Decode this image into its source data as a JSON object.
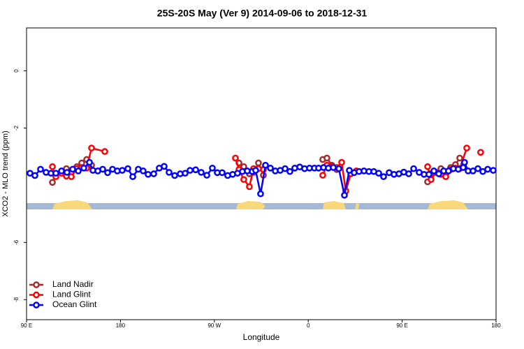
{
  "chart_data": {
    "type": "line",
    "title": "25S-20S May (Ver 9)   2014-09-06 to 2018-12-31",
    "x_label": "Longitude",
    "y_label": "XCO2 - MLO trend (ppm)",
    "xlim": [
      90,
      540
    ],
    "xticks": [
      {
        "value": 90,
        "label": "90 E"
      },
      {
        "value": 180,
        "label": "180"
      },
      {
        "value": 270,
        "label": "90 W"
      },
      {
        "value": 360,
        "label": "0"
      },
      {
        "value": 450,
        "label": "90 E"
      },
      {
        "value": 540,
        "label": "180"
      }
    ],
    "ylim": [
      -8.7,
      1.5
    ],
    "yticks": [
      -8,
      -6,
      -2,
      0
    ],
    "legend": "bottomleft",
    "series": [
      {
        "name": "Land Nadir",
        "color": "#a52a2a",
        "x": [
          114.8,
          118.1,
          123.5,
          128.2,
          132.9,
          138.2,
          142.9,
          147.6,
          152.3,
          null,
          293.6,
          298.2,
          303.6,
          307.6,
          312.3,
          317.0,
          null,
          373.9,
          377.9,
          382.6,
          387.3,
          null,
          474.4,
          477.7,
          482.4,
          487.1,
          491.8,
          496.5,
          501.1,
          505.2
        ],
        "values": [
          -3.9,
          -3.62,
          -3.55,
          -3.42,
          -3.55,
          -3.35,
          -3.22,
          -3.1,
          -3.3,
          null,
          -3.22,
          -3.35,
          -3.6,
          -3.55,
          -3.22,
          -3.65,
          null,
          -3.1,
          -3.05,
          -3.3,
          -3.45,
          null,
          -3.88,
          -3.6,
          -3.55,
          -3.42,
          -3.62,
          -3.38,
          -3.28,
          -3.05
        ]
      },
      {
        "name": "Land Glint",
        "color": "#ff0000",
        "x": [
          114.8,
          118.1,
          123.5,
          128.2,
          132.9,
          138.2,
          142.9,
          147.6,
          152.3,
          165.0,
          null,
          290.2,
          293.6,
          298.2,
          303.6,
          307.6,
          312.3,
          317.0,
          null,
          373.9,
          377.9,
          382.6,
          387.3,
          392.0,
          396.0,
          400.7,
          406.1,
          null,
          474.4,
          477.7,
          482.4,
          487.1,
          491.8,
          496.5,
          501.1,
          505.2,
          511.9,
          null,
          525.2
        ],
        "values": [
          -3.35,
          -3.7,
          -3.58,
          -3.68,
          -3.7,
          -3.42,
          -3.38,
          -3.4,
          -2.7,
          -2.82,
          null,
          -3.05,
          -3.45,
          -3.8,
          -4.05,
          -3.42,
          -3.42,
          -3.45,
          null,
          -3.65,
          -3.3,
          -3.35,
          -3.38,
          -3.2,
          -4.2,
          -3.6,
          -3.5,
          null,
          -3.35,
          -3.8,
          -3.55,
          -3.62,
          -3.7,
          -3.45,
          -3.4,
          -3.42,
          -2.7,
          null,
          -2.85
        ]
      },
      {
        "name": "Ocean Glint",
        "color": "#0000ff",
        "x": [
          93.3,
          98.0,
          103.4,
          108.7,
          113.4,
          118.1,
          123.5,
          128.8,
          134.2,
          139.6,
          144.9,
          150.3,
          153.6,
          158.3,
          163.0,
          167.7,
          172.4,
          177.0,
          181.7,
          187.1,
          191.8,
          197.1,
          201.8,
          206.5,
          211.9,
          217.2,
          221.9,
          226.6,
          232.0,
          237.3,
          242.0,
          246.7,
          252.1,
          257.4,
          262.8,
          268.1,
          272.8,
          277.5,
          282.8,
          287.5,
          292.2,
          296.9,
          301.6,
          306.3,
          309.6,
          314.3,
          319.0,
          323.7,
          328.4,
          333.1,
          337.8,
          342.4,
          347.1,
          351.8,
          356.5,
          361.2,
          365.9,
          369.9,
          374.6,
          379.3,
          384.0,
          389.3,
          394.7,
          399.4,
          404.0,
          408.7,
          413.4,
          418.1,
          422.8,
          427.5,
          432.2,
          437.5,
          442.2,
          446.9,
          451.6,
          456.3,
          461.0,
          466.3,
          471.0,
          475.7,
          480.4,
          485.1,
          489.8,
          494.4,
          499.1,
          503.8,
          508.5,
          509.8,
          513.2,
          517.9,
          522.6,
          527.3,
          532.0,
          537.3
        ],
        "values": [
          -3.58,
          -3.66,
          -3.44,
          -3.55,
          -3.58,
          -3.58,
          -3.5,
          -3.55,
          -3.44,
          -3.5,
          -3.4,
          -3.2,
          -3.48,
          -3.5,
          -3.44,
          -3.56,
          -3.44,
          -3.5,
          -3.48,
          -3.42,
          -3.7,
          -3.44,
          -3.5,
          -3.62,
          -3.6,
          -3.4,
          -3.34,
          -3.55,
          -3.66,
          -3.6,
          -3.58,
          -3.48,
          -3.46,
          -3.55,
          -3.65,
          -3.4,
          -3.56,
          -3.56,
          -3.66,
          -3.62,
          -3.58,
          -3.52,
          -3.5,
          -3.52,
          -3.48,
          -4.3,
          -3.3,
          -3.4,
          -3.5,
          -3.48,
          -3.42,
          -3.52,
          -3.4,
          -3.36,
          -3.42,
          -3.4,
          -3.4,
          -3.4,
          -3.38,
          -3.4,
          -3.38,
          -3.42,
          -4.35,
          -3.48,
          -3.56,
          -3.52,
          -3.5,
          -3.52,
          -3.52,
          -3.58,
          -3.7,
          -3.56,
          -3.62,
          -3.6,
          -3.54,
          -3.6,
          -3.42,
          -3.55,
          -3.62,
          -3.62,
          -3.5,
          -3.6,
          -3.5,
          -3.5,
          -3.42,
          -3.44,
          -3.38,
          -3.2,
          -3.5,
          -3.5,
          -3.42,
          -3.52,
          -3.44,
          -3.48
        ]
      }
    ]
  }
}
